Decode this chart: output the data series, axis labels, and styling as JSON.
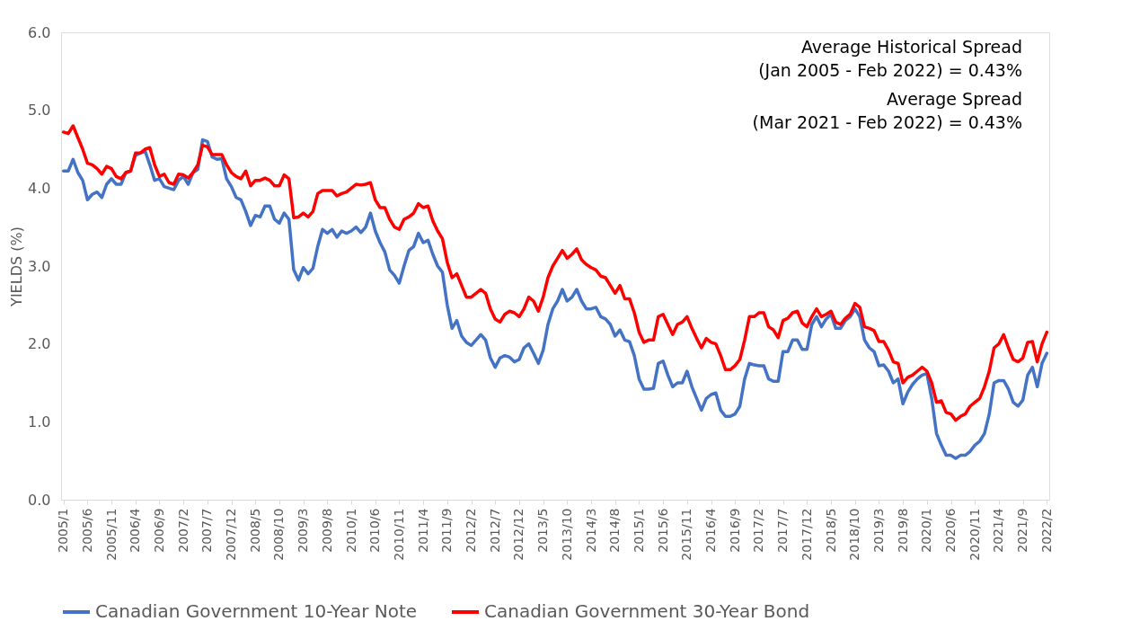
{
  "chart_data": {
    "type": "line",
    "ylabel": "YIELDS (%)",
    "categories": [
      "2005/1",
      null,
      null,
      null,
      null,
      "2005/6",
      null,
      null,
      null,
      null,
      "2005/11",
      null,
      null,
      null,
      null,
      "2006/4",
      null,
      null,
      null,
      null,
      "2006/9",
      null,
      null,
      null,
      null,
      "2007/2",
      null,
      null,
      null,
      null,
      "2007/7",
      null,
      null,
      null,
      null,
      "2007/12",
      null,
      null,
      null,
      null,
      "2008/5",
      null,
      null,
      null,
      null,
      "2008/10",
      null,
      null,
      null,
      null,
      "2009/3",
      null,
      null,
      null,
      null,
      "2009/8",
      null,
      null,
      null,
      null,
      "2010/1",
      null,
      null,
      null,
      null,
      "2010/6",
      null,
      null,
      null,
      null,
      "2010/11",
      null,
      null,
      null,
      null,
      "2011/4",
      null,
      null,
      null,
      null,
      "2011/9",
      null,
      null,
      null,
      null,
      "2012/2",
      null,
      null,
      null,
      null,
      "2012/7",
      null,
      null,
      null,
      null,
      "2012/12",
      null,
      null,
      null,
      null,
      "2013/5",
      null,
      null,
      null,
      null,
      "2013/10",
      null,
      null,
      null,
      null,
      "2014/3",
      null,
      null,
      null,
      null,
      "2014/8",
      null,
      null,
      null,
      null,
      "2015/1",
      null,
      null,
      null,
      null,
      "2015/6",
      null,
      null,
      null,
      null,
      "2015/11",
      null,
      null,
      null,
      null,
      "2016/4",
      null,
      null,
      null,
      null,
      "2016/9",
      null,
      null,
      null,
      null,
      "2017/2",
      null,
      null,
      null,
      null,
      "2017/7",
      null,
      null,
      null,
      null,
      "2017/12",
      null,
      null,
      null,
      null,
      "2018/5",
      null,
      null,
      null,
      null,
      "2018/10",
      null,
      null,
      null,
      null,
      "2019/3",
      null,
      null,
      null,
      null,
      "2019/8",
      null,
      null,
      null,
      null,
      "2020/1",
      null,
      null,
      null,
      null,
      "2020/6",
      null,
      null,
      null,
      null,
      "2020/11",
      null,
      null,
      null,
      null,
      "2021/4",
      null,
      null,
      null,
      null,
      "2021/9",
      null,
      null,
      null,
      null,
      "2022/2"
    ],
    "series": [
      {
        "name": "Canadian Government 10-Year Note",
        "color": "#4472c4",
        "values": [
          4.22,
          4.22,
          4.37,
          4.2,
          4.1,
          3.85,
          3.92,
          3.95,
          3.88,
          4.05,
          4.12,
          4.05,
          4.05,
          4.2,
          4.22,
          4.42,
          4.45,
          4.48,
          4.3,
          4.1,
          4.12,
          4.02,
          4.0,
          3.98,
          4.1,
          4.15,
          4.05,
          4.2,
          4.24,
          4.62,
          4.6,
          4.4,
          4.37,
          4.38,
          4.12,
          4.02,
          3.88,
          3.85,
          3.7,
          3.52,
          3.65,
          3.63,
          3.77,
          3.77,
          3.6,
          3.55,
          3.68,
          3.6,
          2.95,
          2.82,
          2.98,
          2.9,
          2.97,
          3.25,
          3.47,
          3.42,
          3.47,
          3.37,
          3.45,
          3.42,
          3.45,
          3.5,
          3.43,
          3.5,
          3.68,
          3.45,
          3.3,
          3.18,
          2.95,
          2.88,
          2.78,
          3.0,
          3.2,
          3.25,
          3.42,
          3.3,
          3.33,
          3.15,
          3.0,
          2.92,
          2.5,
          2.2,
          2.3,
          2.1,
          2.02,
          1.98,
          2.05,
          2.12,
          2.05,
          1.82,
          1.7,
          1.82,
          1.85,
          1.83,
          1.77,
          1.8,
          1.95,
          2.0,
          1.88,
          1.75,
          1.92,
          2.25,
          2.45,
          2.55,
          2.7,
          2.55,
          2.6,
          2.7,
          2.55,
          2.45,
          2.45,
          2.47,
          2.35,
          2.32,
          2.25,
          2.1,
          2.18,
          2.05,
          2.03,
          1.85,
          1.55,
          1.42,
          1.42,
          1.43,
          1.75,
          1.78,
          1.6,
          1.45,
          1.5,
          1.5,
          1.65,
          1.45,
          1.3,
          1.15,
          1.3,
          1.35,
          1.37,
          1.15,
          1.07,
          1.07,
          1.1,
          1.2,
          1.55,
          1.75,
          1.73,
          1.72,
          1.72,
          1.55,
          1.52,
          1.52,
          1.9,
          1.9,
          2.05,
          2.05,
          1.93,
          1.93,
          2.25,
          2.35,
          2.22,
          2.32,
          2.38,
          2.2,
          2.2,
          2.3,
          2.35,
          2.45,
          2.35,
          2.05,
          1.95,
          1.9,
          1.72,
          1.73,
          1.65,
          1.5,
          1.55,
          1.23,
          1.38,
          1.48,
          1.55,
          1.6,
          1.62,
          1.3,
          0.85,
          0.7,
          0.57,
          0.57,
          0.53,
          0.57,
          0.57,
          0.62,
          0.7,
          0.75,
          0.85,
          1.1,
          1.5,
          1.53,
          1.53,
          1.42,
          1.25,
          1.2,
          1.28,
          1.6,
          1.7,
          1.45,
          1.75,
          1.88
        ]
      },
      {
        "name": "Canadian Government 30-Year Bond",
        "color": "#ff0000",
        "values": [
          4.72,
          4.7,
          4.8,
          4.65,
          4.5,
          4.32,
          4.3,
          4.25,
          4.18,
          4.28,
          4.25,
          4.15,
          4.12,
          4.2,
          4.22,
          4.45,
          4.45,
          4.5,
          4.52,
          4.3,
          4.15,
          4.18,
          4.07,
          4.05,
          4.18,
          4.17,
          4.13,
          4.2,
          4.3,
          4.55,
          4.53,
          4.43,
          4.43,
          4.43,
          4.3,
          4.2,
          4.15,
          4.12,
          4.22,
          4.03,
          4.1,
          4.1,
          4.13,
          4.1,
          4.03,
          4.03,
          4.17,
          4.12,
          3.62,
          3.63,
          3.68,
          3.63,
          3.7,
          3.93,
          3.97,
          3.97,
          3.97,
          3.9,
          3.93,
          3.95,
          4.0,
          4.05,
          4.04,
          4.05,
          4.07,
          3.85,
          3.75,
          3.75,
          3.6,
          3.5,
          3.47,
          3.6,
          3.63,
          3.68,
          3.8,
          3.75,
          3.77,
          3.58,
          3.45,
          3.35,
          3.05,
          2.85,
          2.9,
          2.75,
          2.6,
          2.6,
          2.65,
          2.7,
          2.65,
          2.45,
          2.32,
          2.28,
          2.38,
          2.42,
          2.4,
          2.35,
          2.45,
          2.6,
          2.55,
          2.42,
          2.6,
          2.85,
          3.0,
          3.1,
          3.2,
          3.1,
          3.15,
          3.22,
          3.08,
          3.02,
          2.98,
          2.95,
          2.87,
          2.85,
          2.75,
          2.65,
          2.75,
          2.58,
          2.58,
          2.4,
          2.15,
          2.02,
          2.05,
          2.05,
          2.35,
          2.38,
          2.25,
          2.12,
          2.25,
          2.28,
          2.35,
          2.2,
          2.07,
          1.95,
          2.07,
          2.02,
          2.0,
          1.85,
          1.67,
          1.67,
          1.72,
          1.8,
          2.05,
          2.35,
          2.35,
          2.4,
          2.4,
          2.22,
          2.18,
          2.08,
          2.3,
          2.33,
          2.4,
          2.42,
          2.27,
          2.22,
          2.35,
          2.45,
          2.35,
          2.38,
          2.42,
          2.28,
          2.25,
          2.33,
          2.38,
          2.52,
          2.47,
          2.22,
          2.2,
          2.17,
          2.03,
          2.03,
          1.92,
          1.77,
          1.75,
          1.5,
          1.57,
          1.6,
          1.65,
          1.7,
          1.65,
          1.5,
          1.25,
          1.27,
          1.12,
          1.1,
          1.02,
          1.07,
          1.1,
          1.2,
          1.25,
          1.3,
          1.45,
          1.65,
          1.95,
          2.0,
          2.12,
          1.95,
          1.8,
          1.77,
          1.82,
          2.02,
          2.03,
          1.77,
          2.0,
          2.15
        ]
      }
    ],
    "ylim": [
      0,
      6
    ],
    "yticks": [
      {
        "value": 0,
        "label": "0.0"
      },
      {
        "value": 1,
        "label": "1.0"
      },
      {
        "value": 2,
        "label": "2.0"
      },
      {
        "value": 3,
        "label": "3.0"
      },
      {
        "value": 4,
        "label": "4.0"
      },
      {
        "value": 5,
        "label": "5.0"
      },
      {
        "value": 6,
        "label": "6.0"
      }
    ],
    "grid": false,
    "legend": "bottom",
    "marker": "none",
    "line_style": "solid",
    "annotations": [
      "Average Historical Spread",
      "(Jan 2005 - Feb 2022) = 0.43%",
      "Average Spread",
      "(Mar 2021 - Feb 2022) = 0.43%"
    ]
  }
}
